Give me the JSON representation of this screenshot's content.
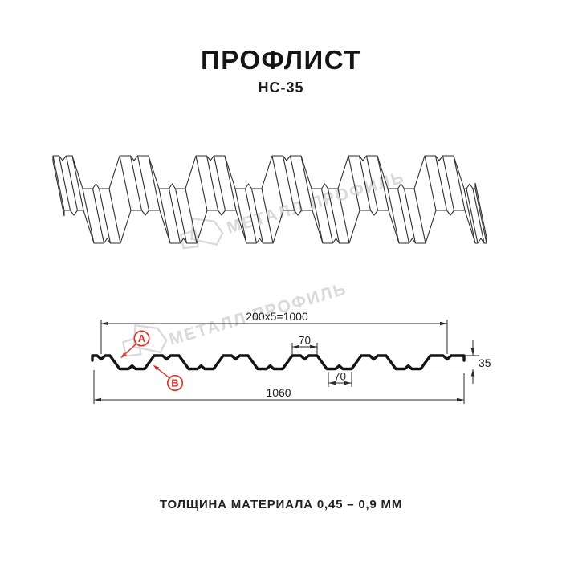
{
  "page": {
    "title": "ПРОФЛИСТ",
    "subtitle": "НС-35",
    "footer_note": "ТОЛЩИНА МАТЕРИАЛА 0,45 – 0,9 ММ"
  },
  "watermark": {
    "text": "МЕТАЛЛ ПРОФИЛЬ"
  },
  "diagram": {
    "profile_name": "НС-35",
    "dimensions": {
      "module_formula": "200x5=1000",
      "crest_width": "70",
      "trough_width": "70",
      "height": "35",
      "total_width": "1060"
    },
    "markers": {
      "a": "А",
      "b": "В"
    }
  },
  "colors": {
    "accent_red": "#e03128",
    "line": "#1a1a1a",
    "watermark": "#d9d9d9"
  }
}
